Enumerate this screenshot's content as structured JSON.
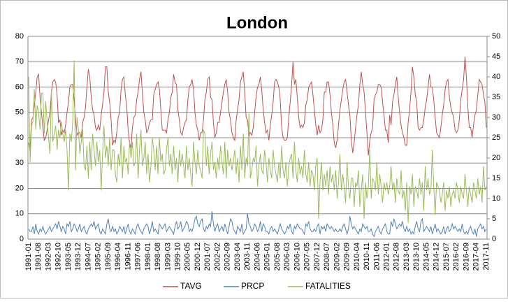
{
  "chart_data": {
    "type": "line",
    "title": "London",
    "categories": [
      "1991-01",
      null,
      null,
      null,
      null,
      null,
      null,
      "1991-08",
      null,
      null,
      null,
      null,
      null,
      null,
      "1992-03",
      null,
      null,
      null,
      null,
      null,
      null,
      "1992-10",
      null,
      null,
      null,
      null,
      null,
      null,
      "1993-05",
      null,
      null,
      null,
      null,
      null,
      null,
      "1993-12",
      null,
      null,
      null,
      null,
      null,
      null,
      "1994-07",
      null,
      null,
      null,
      null,
      null,
      null,
      "1995-02",
      null,
      null,
      null,
      null,
      null,
      null,
      "1995-09",
      null,
      null,
      null,
      null,
      null,
      null,
      "1996-04",
      null,
      null,
      null,
      null,
      null,
      null,
      "1996-11",
      null,
      null,
      null,
      null,
      null,
      null,
      "1997-06",
      null,
      null,
      null,
      null,
      null,
      null,
      "1998-01",
      null,
      null,
      null,
      null,
      null,
      null,
      "1998-08",
      null,
      null,
      null,
      null,
      null,
      null,
      "1999-03",
      null,
      null,
      null,
      null,
      null,
      null,
      "1999-10",
      null,
      null,
      null,
      null,
      null,
      null,
      "2000-05",
      null,
      null,
      null,
      null,
      null,
      null,
      "2000-12",
      null,
      null,
      null,
      null,
      null,
      null,
      "2001-07",
      null,
      null,
      null,
      null,
      null,
      null,
      "2002-02",
      null,
      null,
      null,
      null,
      null,
      null,
      "2002-09",
      null,
      null,
      null,
      null,
      null,
      null,
      "2003-04",
      null,
      null,
      null,
      null,
      null,
      null,
      "2003-11",
      null,
      null,
      null,
      null,
      null,
      null,
      "2004-06",
      null,
      null,
      null,
      null,
      null,
      null,
      "2005-01",
      null,
      null,
      null,
      null,
      null,
      null,
      "2005-08",
      null,
      null,
      null,
      null,
      null,
      null,
      "2006-03",
      null,
      null,
      null,
      null,
      null,
      null,
      "2006-10",
      null,
      null,
      null,
      null,
      null,
      null,
      "2007-05",
      null,
      null,
      null,
      null,
      null,
      null,
      "2007-12",
      null,
      null,
      null,
      null,
      null,
      null,
      "2008-07",
      null,
      null,
      null,
      null,
      null,
      null,
      "2009-02",
      null,
      null,
      null,
      null,
      null,
      null,
      "2009-09",
      null,
      null,
      null,
      null,
      null,
      null,
      "2010-04",
      null,
      null,
      null,
      null,
      null,
      null,
      "2010-11",
      null,
      null,
      null,
      null,
      null,
      null,
      "2011-06",
      null,
      null,
      null,
      null,
      null,
      null,
      "2012-01",
      null,
      null,
      null,
      null,
      null,
      null,
      "2012-08",
      null,
      null,
      null,
      null,
      null,
      null,
      "2013-03",
      null,
      null,
      null,
      null,
      null,
      null,
      "2013-10",
      null,
      null,
      null,
      null,
      null,
      null,
      "2014-05",
      null,
      null,
      null,
      null,
      null,
      null,
      "2014-12",
      null,
      null,
      null,
      null,
      null,
      null,
      "2015-07",
      null,
      null,
      null,
      null,
      null,
      null,
      "2016-02",
      null,
      null,
      null,
      null,
      null,
      null,
      "2016-09",
      null,
      null,
      null,
      null,
      null,
      null,
      "2017-04",
      null,
      null,
      null,
      null,
      null,
      null,
      "2017-11"
    ],
    "series": [
      {
        "name": "TAVG",
        "color": "#c0504d",
        "values": [
          38,
          35,
          47,
          48,
          53,
          58,
          64,
          65,
          56,
          50,
          44,
          39,
          40,
          43,
          47,
          50,
          58,
          62,
          63,
          62,
          57,
          46,
          47,
          41,
          43,
          42,
          45,
          50,
          54,
          60,
          61,
          61,
          55,
          47,
          41,
          42,
          42,
          40,
          46,
          48,
          52,
          60,
          67,
          64,
          56,
          51,
          49,
          44,
          43,
          45,
          43,
          49,
          53,
          58,
          68,
          68,
          58,
          54,
          47,
          37,
          39,
          38,
          42,
          48,
          50,
          59,
          63,
          64,
          57,
          52,
          43,
          38,
          36,
          44,
          48,
          49,
          55,
          58,
          63,
          66,
          58,
          50,
          47,
          42,
          43,
          46,
          47,
          47,
          57,
          59,
          61,
          62,
          59,
          51,
          43,
          43,
          43,
          42,
          47,
          50,
          56,
          58,
          65,
          62,
          61,
          51,
          47,
          42,
          41,
          44,
          46,
          47,
          55,
          60,
          61,
          63,
          59,
          50,
          45,
          43,
          39,
          42,
          42,
          47,
          55,
          58,
          63,
          64,
          56,
          55,
          46,
          40,
          42,
          46,
          46,
          50,
          54,
          58,
          61,
          63,
          58,
          50,
          47,
          42,
          40,
          39,
          47,
          51,
          55,
          62,
          64,
          66,
          58,
          48,
          47,
          41,
          42,
          41,
          44,
          50,
          56,
          60,
          61,
          64,
          59,
          51,
          46,
          42,
          43,
          39,
          45,
          49,
          54,
          62,
          63,
          62,
          60,
          55,
          44,
          40,
          39,
          39,
          40,
          48,
          54,
          61,
          70,
          61,
          63,
          56,
          48,
          44,
          45,
          44,
          46,
          53,
          55,
          60,
          61,
          62,
          57,
          51,
          45,
          41,
          45,
          42,
          43,
          47,
          58,
          58,
          62,
          62,
          57,
          50,
          45,
          38,
          36,
          39,
          45,
          51,
          55,
          59,
          62,
          63,
          58,
          53,
          49,
          39,
          34,
          38,
          44,
          49,
          53,
          61,
          66,
          61,
          58,
          50,
          42,
          33,
          39,
          42,
          44,
          55,
          57,
          58,
          61,
          61,
          60,
          54,
          49,
          43,
          43,
          38,
          49,
          45,
          54,
          57,
          61,
          64,
          56,
          50,
          45,
          42,
          40,
          37,
          37,
          46,
          51,
          58,
          68,
          64,
          57,
          54,
          44,
          43,
          44,
          44,
          47,
          52,
          55,
          60,
          65,
          60,
          60,
          55,
          48,
          42,
          41,
          40,
          44,
          49,
          53,
          59,
          62,
          63,
          56,
          52,
          50,
          48,
          43,
          42,
          43,
          47,
          55,
          59,
          63,
          72,
          64,
          52,
          44,
          44,
          40,
          45,
          49,
          51,
          57,
          63,
          62,
          61,
          57,
          54,
          44
        ]
      },
      {
        "name": "PRCP",
        "color": "#4f81bd",
        "values": [
          4,
          3,
          3,
          5,
          2,
          6,
          3,
          2,
          4,
          3,
          5,
          3,
          2,
          3,
          4,
          5,
          3,
          4,
          5,
          6,
          4,
          7,
          5,
          3,
          5,
          4,
          2,
          6,
          5,
          7,
          3,
          4,
          6,
          5,
          3,
          4,
          6,
          3,
          4,
          5,
          3,
          2,
          4,
          5,
          6,
          5,
          7,
          4,
          5,
          6,
          3,
          2,
          4,
          3,
          2,
          6,
          8,
          4,
          3,
          5,
          3,
          4,
          2,
          3,
          5,
          4,
          3,
          5,
          2,
          4,
          6,
          3,
          2,
          4,
          3,
          2,
          5,
          6,
          4,
          3,
          2,
          4,
          5,
          6,
          5,
          2,
          4,
          7,
          3,
          4,
          3,
          2,
          6,
          5,
          4,
          5,
          6,
          3,
          4,
          5,
          4,
          3,
          2,
          5,
          7,
          4,
          5,
          7,
          3,
          4,
          5,
          7,
          6,
          3,
          4,
          3,
          5,
          8,
          9,
          6,
          5,
          7,
          8,
          4,
          3,
          5,
          4,
          6,
          5,
          11,
          6,
          3,
          5,
          6,
          3,
          4,
          5,
          3,
          6,
          4,
          2,
          5,
          8,
          7,
          4,
          3,
          2,
          5,
          4,
          3,
          6,
          2,
          3,
          4,
          10,
          6,
          5,
          3,
          4,
          6,
          5,
          3,
          4,
          7,
          3,
          6,
          5,
          3,
          3,
          2,
          4,
          5,
          3,
          4,
          3,
          2,
          4,
          6,
          4,
          3,
          2,
          3,
          5,
          4,
          6,
          3,
          2,
          5,
          4,
          6,
          5,
          4,
          4,
          3,
          2,
          6,
          5,
          7,
          4,
          3,
          3,
          4,
          3,
          5,
          6,
          2,
          5,
          4,
          5,
          3,
          6,
          5,
          4,
          5,
          4,
          3,
          4,
          3,
          3,
          4,
          3,
          5,
          6,
          4,
          2,
          4,
          9,
          6,
          4,
          5,
          4,
          3,
          2,
          4,
          3,
          6,
          5,
          4,
          5,
          3,
          3,
          4,
          2,
          1,
          3,
          4,
          5,
          3,
          2,
          4,
          5,
          6,
          3,
          2,
          2,
          7,
          5,
          8,
          6,
          4,
          5,
          6,
          5,
          7,
          4,
          3,
          5,
          3,
          4,
          2,
          3,
          2,
          5,
          7,
          4,
          3,
          7,
          8,
          3,
          4,
          5,
          4,
          3,
          5,
          2,
          4,
          6,
          3,
          4,
          3,
          2,
          3,
          5,
          2,
          4,
          5,
          3,
          4,
          6,
          4,
          5,
          4,
          3,
          4,
          3,
          6,
          3,
          2,
          3,
          2,
          4,
          5,
          3,
          2,
          4,
          1,
          4,
          5,
          6,
          4,
          5,
          3,
          4
        ]
      },
      {
        "name": "FATALITIES",
        "color": "#9bbb59",
        "axis": "y2",
        "values": [
          40,
          19,
          28,
          29,
          37,
          27,
          33,
          31,
          27,
          36,
          36,
          26,
          34,
          29,
          25,
          21,
          37,
          24,
          26,
          28,
          22,
          27,
          25,
          29,
          26,
          24,
          27,
          22,
          12,
          26,
          24,
          29,
          44,
          17,
          30,
          27,
          21,
          24,
          27,
          18,
          17,
          23,
          15,
          24,
          17,
          26,
          22,
          18,
          24,
          19,
          22,
          12,
          21,
          28,
          20,
          23,
          18,
          25,
          17,
          22,
          22,
          16,
          14,
          21,
          18,
          25,
          15,
          23,
          19,
          20,
          16,
          24,
          20,
          24,
          18,
          19,
          26,
          15,
          22,
          27,
          18,
          20,
          24,
          16,
          21,
          14,
          18,
          25,
          22,
          17,
          23,
          16,
          25,
          19,
          21,
          16,
          17,
          22,
          25,
          18,
          21,
          16,
          23,
          17,
          20,
          14,
          22,
          18,
          21,
          18,
          15,
          23,
          17,
          20,
          16,
          13,
          24,
          19,
          16,
          22,
          18,
          17,
          15,
          27,
          26,
          18,
          23,
          16,
          21,
          24,
          17,
          19,
          15,
          20,
          17,
          23,
          19,
          16,
          24,
          15,
          22,
          18,
          20,
          17,
          19,
          22,
          16,
          20,
          14,
          23,
          17,
          26,
          15,
          20,
          18,
          31,
          15,
          17,
          20,
          19,
          23,
          13,
          18,
          21,
          17,
          16,
          22,
          19,
          14,
          20,
          17,
          15,
          22,
          18,
          16,
          14,
          19,
          15,
          23,
          17,
          15,
          19,
          13,
          18,
          20,
          21,
          15,
          24,
          17,
          14,
          20,
          16,
          18,
          15,
          22,
          16,
          14,
          19,
          13,
          17,
          16,
          12,
          18,
          20,
          5,
          14,
          19,
          12,
          16,
          13,
          17,
          11,
          18,
          14,
          16,
          12,
          17,
          10,
          14,
          21,
          12,
          16,
          13,
          9,
          19,
          13,
          10,
          15,
          15,
          8,
          14,
          13,
          17,
          8,
          12,
          16,
          5,
          14,
          10,
          13,
          22,
          10,
          15,
          14,
          12,
          19,
          11,
          16,
          13,
          9,
          14,
          12,
          14,
          11,
          13,
          18,
          12,
          14,
          9,
          15,
          12,
          11,
          17,
          10,
          12,
          7,
          14,
          4,
          13,
          11,
          16,
          8,
          13,
          12,
          10,
          15,
          11,
          14,
          7,
          18,
          12,
          15,
          11,
          12,
          22,
          13,
          6,
          14,
          13,
          12,
          9,
          11,
          14,
          7,
          12,
          10,
          13,
          8,
          11,
          12,
          10,
          14,
          12,
          9,
          13,
          11,
          10,
          16,
          12,
          8,
          13,
          11,
          9,
          14,
          12,
          10,
          15,
          11,
          13,
          9,
          18,
          12,
          13
        ]
      }
    ],
    "ylim": [
      0,
      80
    ],
    "yticks": [
      0,
      10,
      20,
      30,
      40,
      50,
      60,
      70,
      80
    ],
    "y2lim": [
      0,
      50
    ],
    "y2ticks": [
      0,
      5,
      10,
      15,
      20,
      25,
      30,
      35,
      40,
      45,
      50
    ],
    "grid": true,
    "legend": "bottom"
  }
}
